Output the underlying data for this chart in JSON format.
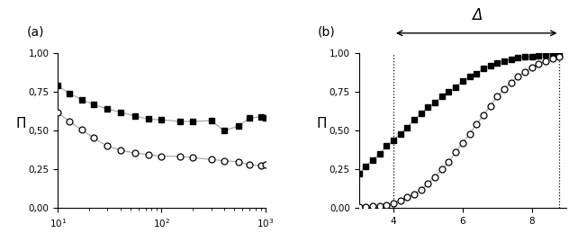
{
  "panel_a": {
    "x_squares": [
      10,
      13,
      17,
      22,
      30,
      40,
      55,
      75,
      100,
      150,
      200,
      300,
      400,
      550,
      700,
      900,
      1000
    ],
    "y_squares": [
      0.79,
      0.74,
      0.7,
      0.67,
      0.64,
      0.62,
      0.595,
      0.575,
      0.57,
      0.56,
      0.56,
      0.565,
      0.5,
      0.53,
      0.58,
      0.59,
      0.585
    ],
    "x_circles": [
      10,
      13,
      17,
      22,
      30,
      40,
      55,
      75,
      100,
      150,
      200,
      300,
      400,
      550,
      700,
      900,
      1000
    ],
    "y_circles": [
      0.615,
      0.56,
      0.505,
      0.455,
      0.4,
      0.375,
      0.355,
      0.345,
      0.335,
      0.335,
      0.325,
      0.315,
      0.305,
      0.3,
      0.28,
      0.275,
      0.28
    ],
    "ylabel": "Π",
    "xlim": [
      10,
      1000
    ],
    "ylim": [
      0.0,
      1.0
    ],
    "yticks": [
      0.0,
      0.25,
      0.5,
      0.75,
      1.0
    ],
    "ytick_labels": [
      "0,00",
      "0,25",
      "0,50",
      "0,75",
      "1,00"
    ],
    "xtick_labels": [
      "10$^1$",
      "10$^2$",
      "10$^3$"
    ],
    "label": "(a)"
  },
  "panel_b": {
    "x_squares": [
      3.0,
      3.2,
      3.4,
      3.6,
      3.8,
      4.0,
      4.2,
      4.4,
      4.6,
      4.8,
      5.0,
      5.2,
      5.4,
      5.6,
      5.8,
      6.0,
      6.2,
      6.4,
      6.6,
      6.8,
      7.0,
      7.2,
      7.4,
      7.6,
      7.8,
      8.0,
      8.2,
      8.4,
      8.6,
      8.8
    ],
    "y_squares": [
      0.22,
      0.27,
      0.31,
      0.35,
      0.4,
      0.44,
      0.48,
      0.52,
      0.57,
      0.61,
      0.65,
      0.68,
      0.72,
      0.75,
      0.78,
      0.82,
      0.85,
      0.87,
      0.9,
      0.92,
      0.94,
      0.95,
      0.96,
      0.97,
      0.975,
      0.98,
      0.985,
      0.99,
      0.993,
      0.997
    ],
    "x_circles": [
      3.0,
      3.2,
      3.4,
      3.6,
      3.8,
      4.0,
      4.2,
      4.4,
      4.6,
      4.8,
      5.0,
      5.2,
      5.4,
      5.6,
      5.8,
      6.0,
      6.2,
      6.4,
      6.6,
      6.8,
      7.0,
      7.2,
      7.4,
      7.6,
      7.8,
      8.0,
      8.2,
      8.4,
      8.6,
      8.8
    ],
    "y_circles": [
      0.005,
      0.008,
      0.012,
      0.016,
      0.022,
      0.03,
      0.05,
      0.07,
      0.09,
      0.12,
      0.16,
      0.2,
      0.25,
      0.3,
      0.36,
      0.42,
      0.48,
      0.54,
      0.6,
      0.66,
      0.72,
      0.77,
      0.81,
      0.85,
      0.88,
      0.91,
      0.93,
      0.95,
      0.965,
      0.975
    ],
    "ylabel": "Π",
    "xlim": [
      3.0,
      9.0
    ],
    "ylim": [
      0.0,
      1.0
    ],
    "xticks": [
      4,
      6,
      8
    ],
    "xtick_labels": [
      "4",
      "6",
      "8"
    ],
    "yticks": [
      0.0,
      0.25,
      0.5,
      0.75,
      1.0
    ],
    "ytick_labels": [
      "0,00",
      "0,25",
      "0,50",
      "0,75",
      "1,00"
    ],
    "vline1": 4.0,
    "vline2": 8.8,
    "delta_label": "Δ",
    "label": "(b)"
  },
  "line_color": "#aaaaaa",
  "bg_color": "#ffffff"
}
